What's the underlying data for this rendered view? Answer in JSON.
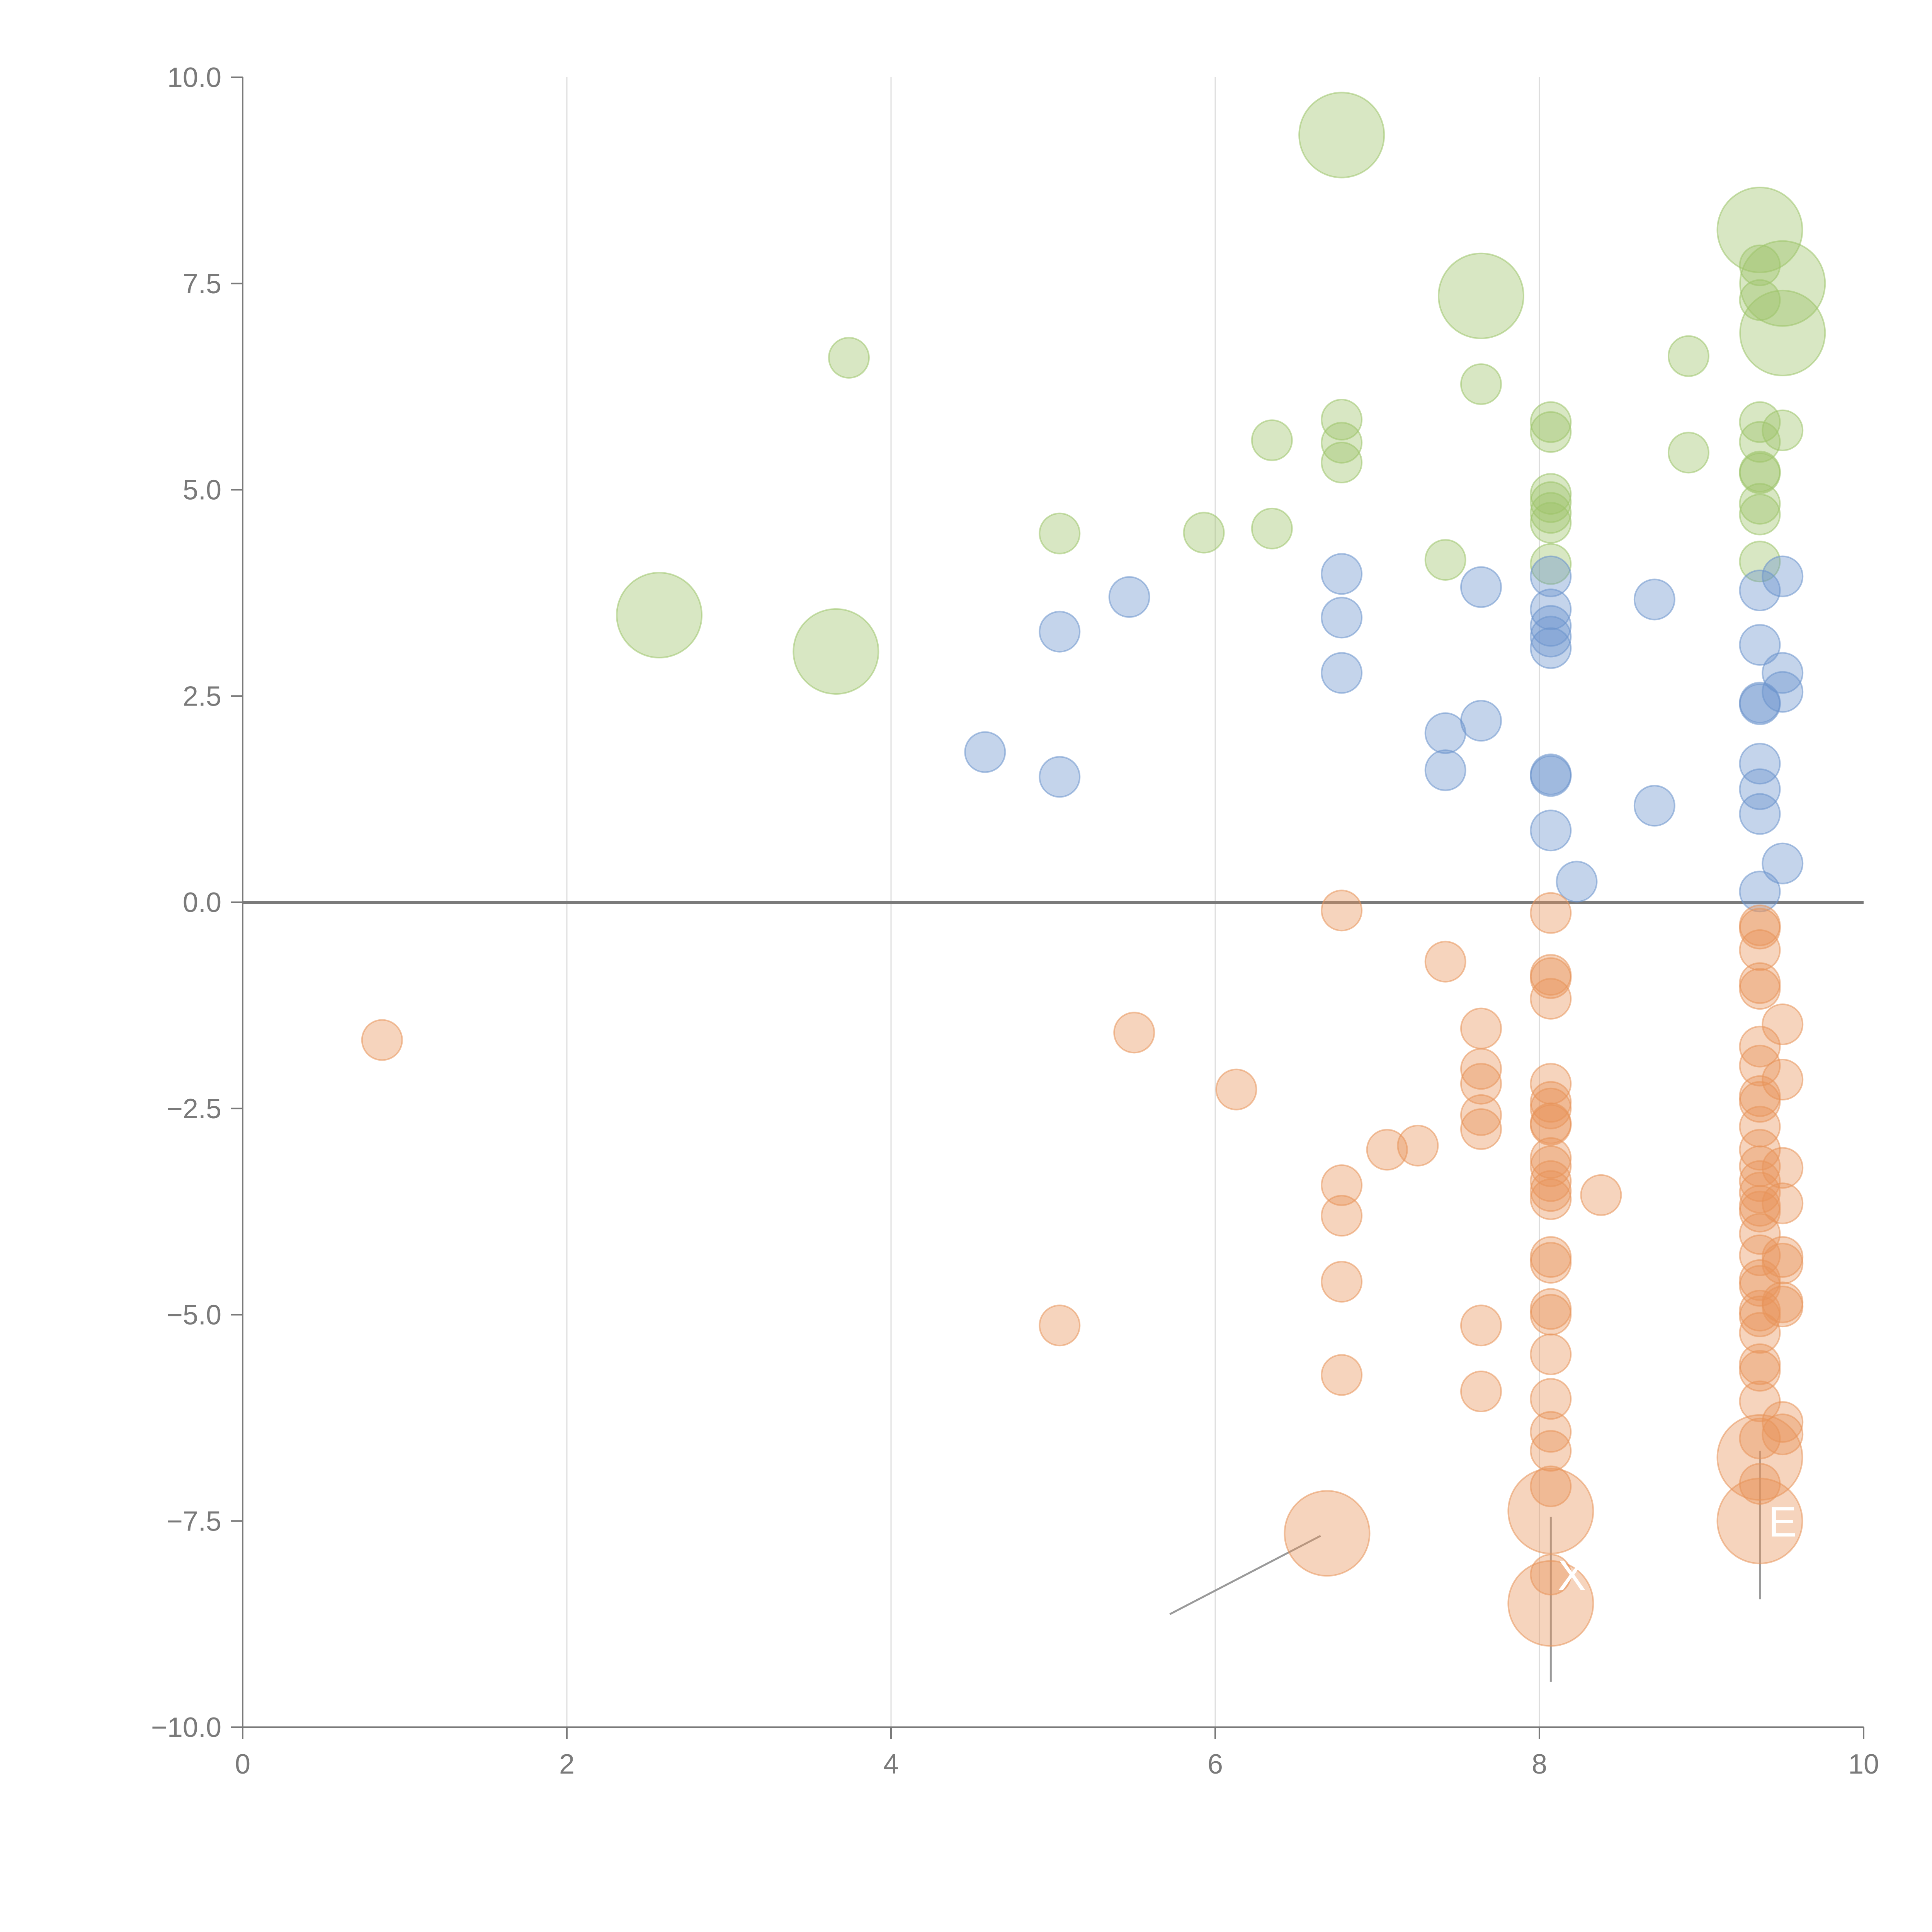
{
  "chart_data": {
    "type": "scatter",
    "title": "",
    "xlabel": "",
    "ylabel": "",
    "xlim": [
      0,
      10
    ],
    "ylim": [
      -10,
      10
    ],
    "x_ticks": [
      0,
      2,
      4,
      6,
      8,
      10
    ],
    "y_ticks": [
      -10,
      -7.5,
      -5,
      -2.5,
      0,
      2.5,
      5,
      7.5,
      10
    ],
    "x_tick_labels": [
      "0",
      "2",
      "4",
      "6",
      "8",
      "10"
    ],
    "y_tick_labels": [
      "−10.0",
      "−7.5",
      "−5.0",
      "−2.5",
      "0.0",
      "2.5",
      "5.0",
      "7.5",
      "10.0"
    ],
    "grid": "vertical",
    "zero_line": true,
    "colors": {
      "green": "#9dc46a",
      "blue": "#6b93cc",
      "orange": "#e8935a",
      "axis": "#7a7a7a",
      "grid": "#dddddd",
      "leader": "#9a9a9a"
    },
    "series": [
      {
        "name": "green",
        "color": "#9dc46a",
        "points": [
          {
            "x": 6.78,
            "y": 9.3,
            "size": 2
          },
          {
            "x": 9.36,
            "y": 8.15,
            "size": 2
          },
          {
            "x": 7.64,
            "y": 7.35,
            "size": 2
          },
          {
            "x": 9.5,
            "y": 7.5,
            "size": 2
          },
          {
            "x": 9.5,
            "y": 6.9,
            "size": 2
          },
          {
            "x": 2.57,
            "y": 3.48,
            "size": 2
          },
          {
            "x": 3.66,
            "y": 3.04,
            "size": 2
          },
          {
            "x": 9.36,
            "y": 7.72,
            "size": 1
          },
          {
            "x": 9.36,
            "y": 7.3,
            "size": 1
          },
          {
            "x": 3.74,
            "y": 6.6,
            "size": 1
          },
          {
            "x": 7.64,
            "y": 6.28,
            "size": 1
          },
          {
            "x": 8.92,
            "y": 6.62,
            "size": 1
          },
          {
            "x": 6.78,
            "y": 5.85,
            "size": 1
          },
          {
            "x": 6.78,
            "y": 5.57,
            "size": 1
          },
          {
            "x": 6.78,
            "y": 5.33,
            "size": 1
          },
          {
            "x": 6.35,
            "y": 5.6,
            "size": 1
          },
          {
            "x": 8.07,
            "y": 5.82,
            "size": 1
          },
          {
            "x": 8.07,
            "y": 5.7,
            "size": 1
          },
          {
            "x": 9.36,
            "y": 5.82,
            "size": 1
          },
          {
            "x": 9.36,
            "y": 5.58,
            "size": 1
          },
          {
            "x": 9.5,
            "y": 5.72,
            "size": 1
          },
          {
            "x": 8.92,
            "y": 5.45,
            "size": 1
          },
          {
            "x": 9.36,
            "y": 5.22,
            "size": 1
          },
          {
            "x": 9.36,
            "y": 5.2,
            "size": 1
          },
          {
            "x": 9.36,
            "y": 4.83,
            "size": 1
          },
          {
            "x": 9.36,
            "y": 4.7,
            "size": 1
          },
          {
            "x": 9.36,
            "y": 4.13,
            "size": 1
          },
          {
            "x": 8.07,
            "y": 4.95,
            "size": 1
          },
          {
            "x": 8.07,
            "y": 4.85,
            "size": 1
          },
          {
            "x": 8.07,
            "y": 4.72,
            "size": 1
          },
          {
            "x": 8.07,
            "y": 4.6,
            "size": 1
          },
          {
            "x": 8.07,
            "y": 4.1,
            "size": 1
          },
          {
            "x": 7.42,
            "y": 4.15,
            "size": 1
          },
          {
            "x": 6.35,
            "y": 4.53,
            "size": 1
          },
          {
            "x": 5.93,
            "y": 4.48,
            "size": 1
          },
          {
            "x": 5.04,
            "y": 4.47,
            "size": 1
          }
        ]
      },
      {
        "name": "blue",
        "color": "#6b93cc",
        "points": [
          {
            "x": 6.78,
            "y": 3.98,
            "size": 1
          },
          {
            "x": 6.78,
            "y": 3.45,
            "size": 1
          },
          {
            "x": 6.78,
            "y": 2.78,
            "size": 1
          },
          {
            "x": 5.47,
            "y": 3.7,
            "size": 1
          },
          {
            "x": 5.04,
            "y": 3.28,
            "size": 1
          },
          {
            "x": 5.04,
            "y": 1.52,
            "size": 1
          },
          {
            "x": 4.58,
            "y": 1.82,
            "size": 1
          },
          {
            "x": 7.64,
            "y": 3.82,
            "size": 1
          },
          {
            "x": 7.64,
            "y": 2.2,
            "size": 1
          },
          {
            "x": 7.42,
            "y": 2.05,
            "size": 1
          },
          {
            "x": 7.42,
            "y": 1.6,
            "size": 1
          },
          {
            "x": 8.07,
            "y": 3.95,
            "size": 1
          },
          {
            "x": 8.07,
            "y": 3.55,
            "size": 1
          },
          {
            "x": 8.07,
            "y": 3.35,
            "size": 1
          },
          {
            "x": 8.07,
            "y": 3.22,
            "size": 1
          },
          {
            "x": 8.07,
            "y": 3.08,
            "size": 1
          },
          {
            "x": 8.07,
            "y": 1.55,
            "size": 1
          },
          {
            "x": 8.07,
            "y": 1.53,
            "size": 1
          },
          {
            "x": 8.07,
            "y": 0.87,
            "size": 1
          },
          {
            "x": 8.23,
            "y": 0.25,
            "size": 1
          },
          {
            "x": 8.71,
            "y": 3.67,
            "size": 1
          },
          {
            "x": 8.71,
            "y": 1.17,
            "size": 1
          },
          {
            "x": 9.36,
            "y": 3.78,
            "size": 1
          },
          {
            "x": 9.36,
            "y": 3.12,
            "size": 1
          },
          {
            "x": 9.36,
            "y": 2.42,
            "size": 1
          },
          {
            "x": 9.36,
            "y": 2.4,
            "size": 1
          },
          {
            "x": 9.36,
            "y": 1.68,
            "size": 1
          },
          {
            "x": 9.36,
            "y": 1.37,
            "size": 1
          },
          {
            "x": 9.36,
            "y": 1.07,
            "size": 1
          },
          {
            "x": 9.36,
            "y": 0.13,
            "size": 1
          },
          {
            "x": 9.5,
            "y": 3.95,
            "size": 1
          },
          {
            "x": 9.5,
            "y": 2.78,
            "size": 1
          },
          {
            "x": 9.5,
            "y": 2.55,
            "size": 1
          },
          {
            "x": 9.5,
            "y": 0.47,
            "size": 1
          }
        ]
      },
      {
        "name": "orange",
        "color": "#e8935a",
        "points": [
          {
            "x": 0.86,
            "y": -1.67,
            "size": 1
          },
          {
            "x": 5.5,
            "y": -1.58,
            "size": 1
          },
          {
            "x": 6.13,
            "y": -2.27,
            "size": 1
          },
          {
            "x": 5.04,
            "y": -5.13,
            "size": 1
          },
          {
            "x": 6.78,
            "y": -0.1,
            "size": 1
          },
          {
            "x": 6.78,
            "y": -3.43,
            "size": 1
          },
          {
            "x": 6.78,
            "y": -3.8,
            "size": 1
          },
          {
            "x": 6.78,
            "y": -4.6,
            "size": 1
          },
          {
            "x": 6.78,
            "y": -5.73,
            "size": 1
          },
          {
            "x": 7.06,
            "y": -3.0,
            "size": 1
          },
          {
            "x": 7.25,
            "y": -2.95,
            "size": 1
          },
          {
            "x": 7.42,
            "y": -0.72,
            "size": 1
          },
          {
            "x": 7.64,
            "y": -1.53,
            "size": 1
          },
          {
            "x": 7.64,
            "y": -2.02,
            "size": 1
          },
          {
            "x": 7.64,
            "y": -2.2,
            "size": 1
          },
          {
            "x": 7.64,
            "y": -2.58,
            "size": 1
          },
          {
            "x": 7.64,
            "y": -2.75,
            "size": 1
          },
          {
            "x": 7.64,
            "y": -5.13,
            "size": 1
          },
          {
            "x": 7.64,
            "y": -5.93,
            "size": 1
          },
          {
            "x": 8.07,
            "y": -0.13,
            "size": 1
          },
          {
            "x": 8.07,
            "y": -0.88,
            "size": 1
          },
          {
            "x": 8.07,
            "y": -0.92,
            "size": 1
          },
          {
            "x": 8.07,
            "y": -1.17,
            "size": 1
          },
          {
            "x": 8.07,
            "y": -2.2,
            "size": 1
          },
          {
            "x": 8.07,
            "y": -2.42,
            "size": 1
          },
          {
            "x": 8.07,
            "y": -2.5,
            "size": 1
          },
          {
            "x": 8.07,
            "y": -2.68,
            "size": 1
          },
          {
            "x": 8.07,
            "y": -2.7,
            "size": 1
          },
          {
            "x": 8.07,
            "y": -3.1,
            "size": 1
          },
          {
            "x": 8.07,
            "y": -3.2,
            "size": 1
          },
          {
            "x": 8.07,
            "y": -3.38,
            "size": 1
          },
          {
            "x": 8.07,
            "y": -3.5,
            "size": 1
          },
          {
            "x": 8.07,
            "y": -3.6,
            "size": 1
          },
          {
            "x": 8.07,
            "y": -4.3,
            "size": 1
          },
          {
            "x": 8.07,
            "y": -4.37,
            "size": 1
          },
          {
            "x": 8.07,
            "y": -4.93,
            "size": 1
          },
          {
            "x": 8.07,
            "y": -5.0,
            "size": 1
          },
          {
            "x": 8.07,
            "y": -5.48,
            "size": 1
          },
          {
            "x": 8.07,
            "y": -6.02,
            "size": 1
          },
          {
            "x": 8.07,
            "y": -6.42,
            "size": 1
          },
          {
            "x": 8.07,
            "y": -6.65,
            "size": 1
          },
          {
            "x": 8.07,
            "y": -7.08,
            "size": 1
          },
          {
            "x": 8.07,
            "y": -8.15,
            "size": 1
          },
          {
            "x": 8.38,
            "y": -3.55,
            "size": 1
          },
          {
            "x": 9.36,
            "y": -0.28,
            "size": 1
          },
          {
            "x": 9.36,
            "y": -0.32,
            "size": 1
          },
          {
            "x": 9.36,
            "y": -0.58,
            "size": 1
          },
          {
            "x": 9.36,
            "y": -0.98,
            "size": 1
          },
          {
            "x": 9.36,
            "y": -1.05,
            "size": 1
          },
          {
            "x": 9.36,
            "y": -1.75,
            "size": 1
          },
          {
            "x": 9.36,
            "y": -1.98,
            "size": 1
          },
          {
            "x": 9.36,
            "y": -2.35,
            "size": 1
          },
          {
            "x": 9.36,
            "y": -2.42,
            "size": 1
          },
          {
            "x": 9.36,
            "y": -2.72,
            "size": 1
          },
          {
            "x": 9.36,
            "y": -3.0,
            "size": 1
          },
          {
            "x": 9.36,
            "y": -3.2,
            "size": 1
          },
          {
            "x": 9.36,
            "y": -3.38,
            "size": 1
          },
          {
            "x": 9.36,
            "y": -3.52,
            "size": 1
          },
          {
            "x": 9.36,
            "y": -3.68,
            "size": 1
          },
          {
            "x": 9.36,
            "y": -3.75,
            "size": 1
          },
          {
            "x": 9.36,
            "y": -4.02,
            "size": 1
          },
          {
            "x": 9.36,
            "y": -4.28,
            "size": 1
          },
          {
            "x": 9.36,
            "y": -4.58,
            "size": 1
          },
          {
            "x": 9.36,
            "y": -4.65,
            "size": 1
          },
          {
            "x": 9.36,
            "y": -4.95,
            "size": 1
          },
          {
            "x": 9.36,
            "y": -5.02,
            "size": 1
          },
          {
            "x": 9.36,
            "y": -5.22,
            "size": 1
          },
          {
            "x": 9.36,
            "y": -5.6,
            "size": 1
          },
          {
            "x": 9.36,
            "y": -5.68,
            "size": 1
          },
          {
            "x": 9.36,
            "y": -6.05,
            "size": 1
          },
          {
            "x": 9.36,
            "y": -6.5,
            "size": 1
          },
          {
            "x": 9.36,
            "y": -7.05,
            "size": 1
          },
          {
            "x": 9.5,
            "y": -1.48,
            "size": 1
          },
          {
            "x": 9.5,
            "y": -2.15,
            "size": 1
          },
          {
            "x": 9.5,
            "y": -3.22,
            "size": 1
          },
          {
            "x": 9.5,
            "y": -3.65,
            "size": 1
          },
          {
            "x": 9.5,
            "y": -4.3,
            "size": 1
          },
          {
            "x": 9.5,
            "y": -4.38,
            "size": 1
          },
          {
            "x": 9.5,
            "y": -4.85,
            "size": 1
          },
          {
            "x": 9.5,
            "y": -4.9,
            "size": 1
          },
          {
            "x": 9.5,
            "y": -6.3,
            "size": 1
          },
          {
            "x": 9.5,
            "y": -6.45,
            "size": 1
          },
          {
            "x": 6.69,
            "y": -7.65,
            "size": 2
          },
          {
            "x": 8.07,
            "y": -7.38,
            "size": 2
          },
          {
            "x": 8.07,
            "y": -8.5,
            "size": 2
          },
          {
            "x": 9.36,
            "y": -6.73,
            "size": 2
          },
          {
            "x": 9.36,
            "y": -7.5,
            "size": 2
          }
        ]
      }
    ],
    "annotations": [
      {
        "text": "E",
        "x": 9.5,
        "y": -7.5,
        "anchor_x": 9.36,
        "anchor_y": -7.5
      },
      {
        "text": "X",
        "x": 8.2,
        "y": -8.15,
        "anchor_x": 8.07,
        "anchor_y": -7.38
      }
    ]
  }
}
